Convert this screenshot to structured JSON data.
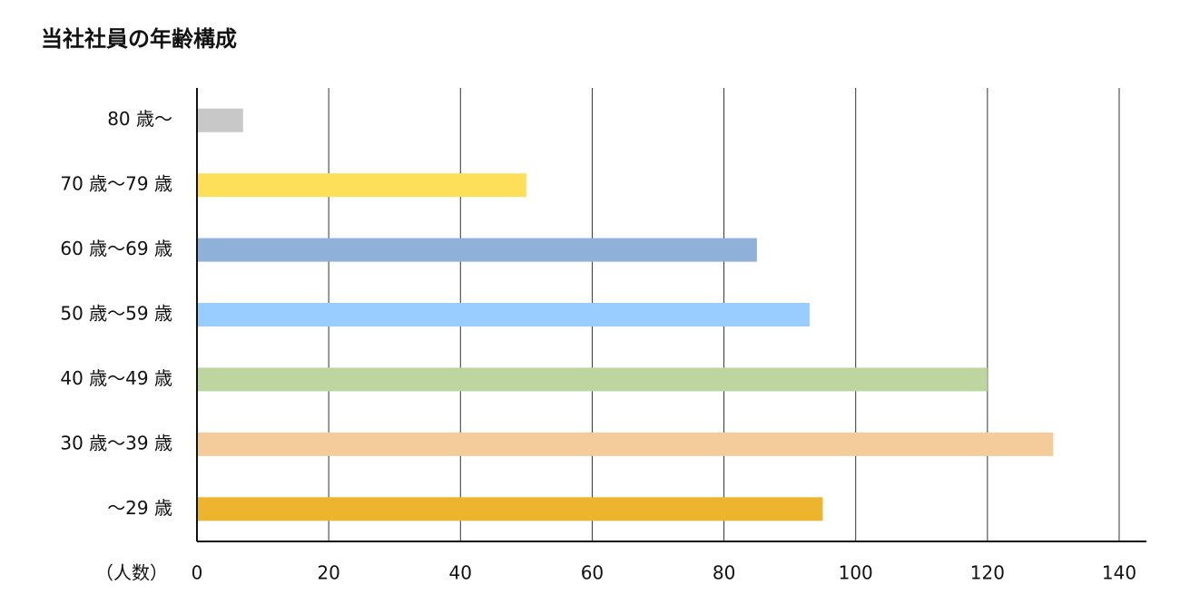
{
  "chart_data": {
    "type": "bar",
    "orientation": "horizontal",
    "title": "当社社員の年齢構成",
    "x_label": "（人数）",
    "categories": [
      "80 歳〜",
      "70 歳〜79 歳",
      "60 歳〜69 歳",
      "50 歳〜59 歳",
      "40 歳〜49 歳",
      "30 歳〜39 歳",
      "〜29 歳"
    ],
    "values": [
      7,
      50,
      85,
      93,
      120,
      130,
      95
    ],
    "colors": [
      "#c8c8c8",
      "#fedf5a",
      "#8fb0d8",
      "#99ccff",
      "#bdd59e",
      "#f4cc9c",
      "#edb42e"
    ],
    "xlim": [
      0,
      140
    ],
    "xticks": [
      0,
      20,
      40,
      60,
      80,
      100,
      120,
      140
    ],
    "grid": true
  }
}
